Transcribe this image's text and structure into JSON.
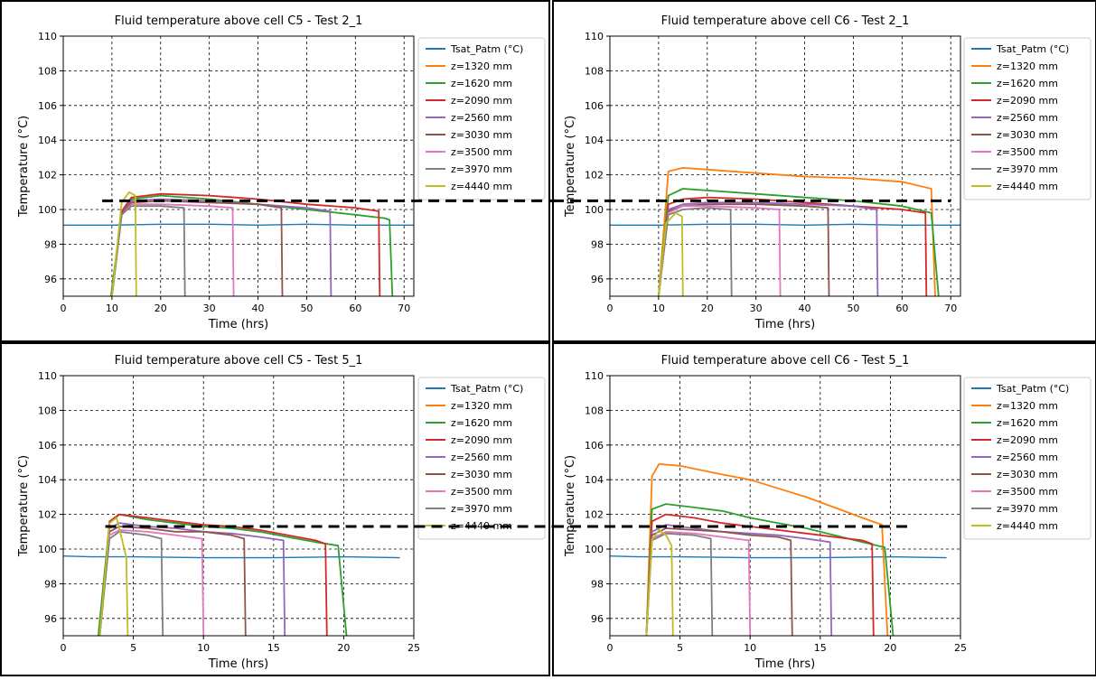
{
  "colors": {
    "Tsat_Patm (°C)": "#1f77b4",
    "z=1320 mm": "#ff7f0e",
    "z=1620 mm": "#2ca02c",
    "z=2090 mm": "#d62728",
    "z=2560 mm": "#9467bd",
    "z=3030 mm": "#8c564b",
    "z=3500 mm": "#e377c2",
    "z=3970 mm": "#7f7f7f",
    "z=4440 mm": "#bcbd22",
    "reference_line": "#000000"
  },
  "chart_data": [
    {
      "type": "line",
      "title": "Fluid temperature above cell C5 - Test 2_1",
      "xlabel": "Time (hrs)",
      "ylabel": "Temperature (°C)",
      "xlim": [
        0,
        72
      ],
      "ylim": [
        95,
        110
      ],
      "xticks": [
        0,
        10,
        20,
        30,
        40,
        50,
        60,
        70
      ],
      "yticks": [
        96,
        98,
        100,
        102,
        104,
        106,
        108,
        110
      ],
      "grid": true,
      "legend_position": "outside-right",
      "legend": [
        "Tsat_Patm (°C)",
        "z=1320 mm",
        "z=1620 mm",
        "z=2090 mm",
        "z=2560 mm",
        "z=3030 mm",
        "z=3500 mm",
        "z=3970 mm",
        "z=4440 mm"
      ],
      "reference_line": {
        "y": 100.5,
        "style": "dashed",
        "x_from": 8,
        "x_to": 70
      },
      "series": [
        {
          "name": "Tsat_Patm (°C)",
          "x": [
            0,
            10,
            20,
            30,
            40,
            50,
            60,
            70,
            72
          ],
          "y": [
            99.1,
            99.1,
            99.15,
            99.15,
            99.1,
            99.15,
            99.1,
            99.1,
            99.1
          ]
        },
        {
          "name": "z=1620 mm",
          "x": [
            9.8,
            12,
            14,
            20,
            30,
            40,
            50,
            60,
            66,
            67,
            67.6
          ],
          "y": [
            95,
            99.8,
            100.6,
            100.8,
            100.6,
            100.3,
            100,
            99.7,
            99.5,
            99.4,
            95
          ]
        },
        {
          "name": "z=2090 mm",
          "x": [
            10,
            12,
            14,
            20,
            30,
            40,
            50,
            60,
            64.8,
            65
          ],
          "y": [
            95,
            99.9,
            100.7,
            100.9,
            100.8,
            100.6,
            100.3,
            100.1,
            99.9,
            95
          ]
        },
        {
          "name": "z=2560 mm",
          "x": [
            10,
            12,
            14,
            20,
            30,
            40,
            50,
            54.8,
            55
          ],
          "y": [
            95,
            99.8,
            100.5,
            100.6,
            100.5,
            100.3,
            100.1,
            99.9,
            95
          ]
        },
        {
          "name": "z=3030 mm",
          "x": [
            10,
            12,
            14,
            20,
            30,
            40,
            44.8,
            45
          ],
          "y": [
            95,
            99.8,
            100.4,
            100.5,
            100.4,
            100.3,
            100.1,
            95
          ]
        },
        {
          "name": "z=3500 mm",
          "x": [
            10,
            12,
            14,
            20,
            30,
            34.8,
            35
          ],
          "y": [
            95,
            99.7,
            100.3,
            100.3,
            100.2,
            100.1,
            95
          ]
        },
        {
          "name": "z=3970 mm",
          "x": [
            10,
            12,
            14,
            20,
            24.8,
            25
          ],
          "y": [
            95,
            99.7,
            100.2,
            100.2,
            100.1,
            95
          ]
        },
        {
          "name": "z=4440 mm",
          "x": [
            10,
            12,
            13.5,
            14.8,
            15
          ],
          "y": [
            95,
            100.4,
            101,
            100.8,
            95
          ]
        }
      ]
    },
    {
      "type": "line",
      "title": "Fluid temperature above cell C6 - Test 2_1",
      "xlabel": "Time (hrs)",
      "ylabel": "Temperature (°C)",
      "xlim": [
        0,
        72
      ],
      "ylim": [
        95,
        110
      ],
      "xticks": [
        0,
        10,
        20,
        30,
        40,
        50,
        60,
        70
      ],
      "yticks": [
        96,
        98,
        100,
        102,
        104,
        106,
        108,
        110
      ],
      "grid": true,
      "legend_position": "outside-right",
      "legend": [
        "Tsat_Patm (°C)",
        "z=1320 mm",
        "z=1620 mm",
        "z=2090 mm",
        "z=2560 mm",
        "z=3030 mm",
        "z=3500 mm",
        "z=3970 mm",
        "z=4440 mm"
      ],
      "reference_line": {
        "y": 100.5,
        "style": "dashed",
        "x_from": 1,
        "x_to": 70
      },
      "series": [
        {
          "name": "Tsat_Patm (°C)",
          "x": [
            0,
            10,
            20,
            30,
            40,
            50,
            60,
            70,
            72
          ],
          "y": [
            99.1,
            99.1,
            99.15,
            99.15,
            99.1,
            99.15,
            99.1,
            99.1,
            99.1
          ]
        },
        {
          "name": "z=1320 mm",
          "x": [
            10,
            12,
            15,
            20,
            30,
            40,
            50,
            60,
            66,
            66.8
          ],
          "y": [
            95,
            102.2,
            102.4,
            102.3,
            102.1,
            101.9,
            101.8,
            101.6,
            101.2,
            95
          ]
        },
        {
          "name": "z=1620 mm",
          "x": [
            10,
            12,
            15,
            20,
            30,
            40,
            50,
            60,
            66,
            67.5
          ],
          "y": [
            95,
            100.8,
            101.2,
            101.1,
            100.9,
            100.7,
            100.5,
            100.2,
            99.8,
            95
          ]
        },
        {
          "name": "z=2090 mm",
          "x": [
            10,
            12,
            15,
            20,
            30,
            40,
            50,
            60,
            64.8,
            65
          ],
          "y": [
            95,
            100.3,
            100.6,
            100.7,
            100.6,
            100.4,
            100.2,
            100,
            99.8,
            95
          ]
        },
        {
          "name": "z=2560 mm",
          "x": [
            10,
            12,
            15,
            20,
            30,
            40,
            50,
            54.8,
            55
          ],
          "y": [
            95,
            100,
            100.3,
            100.4,
            100.4,
            100.3,
            100.2,
            100,
            95
          ]
        },
        {
          "name": "z=3030 mm",
          "x": [
            10,
            12,
            15,
            20,
            30,
            40,
            44.8,
            45
          ],
          "y": [
            95,
            99.9,
            100.2,
            100.3,
            100.3,
            100.2,
            100.1,
            95
          ]
        },
        {
          "name": "z=3500 mm",
          "x": [
            10,
            12,
            15,
            20,
            30,
            34.8,
            35
          ],
          "y": [
            95,
            99.8,
            100.2,
            100.2,
            100.1,
            100,
            95
          ]
        },
        {
          "name": "z=3970 mm",
          "x": [
            10,
            12,
            15,
            20,
            24.8,
            25
          ],
          "y": [
            95,
            99.7,
            100,
            100.1,
            100,
            95
          ]
        },
        {
          "name": "z=4440 mm",
          "x": [
            10,
            11.5,
            13.5,
            14.8,
            15
          ],
          "y": [
            95,
            99.2,
            99.8,
            99.6,
            95
          ]
        }
      ]
    },
    {
      "type": "line",
      "title": "Fluid temperature above cell C5 - Test 5_1",
      "xlabel": "Time (hrs)",
      "ylabel": "Temperature (°C)",
      "xlim": [
        0,
        25
      ],
      "ylim": [
        95,
        110
      ],
      "xticks": [
        0,
        5,
        10,
        15,
        20,
        25
      ],
      "yticks": [
        96,
        98,
        100,
        102,
        104,
        106,
        108,
        110
      ],
      "grid": true,
      "legend_position": "outside-right",
      "legend": [
        "Tsat_Patm (°C)",
        "z=1320 mm",
        "z=1620 mm",
        "z=2090 mm",
        "z=2560 mm",
        "z=3030 mm",
        "z=3500 mm",
        "z=3970 mm",
        "z=4440 mm"
      ],
      "reference_line": {
        "y": 101.3,
        "style": "dashed",
        "x_from": 3,
        "x_to": 25
      },
      "series": [
        {
          "name": "Tsat_Patm (°C)",
          "x": [
            0,
            2,
            5,
            10,
            15,
            20,
            24
          ],
          "y": [
            99.6,
            99.55,
            99.55,
            99.5,
            99.5,
            99.55,
            99.5
          ]
        },
        {
          "name": "z=1620 mm",
          "x": [
            2.5,
            3.3,
            4,
            6,
            8,
            10,
            12,
            14,
            16,
            18,
            19.6,
            20.2
          ],
          "y": [
            95,
            101.5,
            102,
            101.7,
            101.5,
            101.3,
            101.2,
            101,
            100.7,
            100.4,
            100.2,
            95
          ]
        },
        {
          "name": "z=2090 mm",
          "x": [
            2.6,
            3.3,
            4,
            6,
            8,
            10,
            12,
            14,
            16,
            18,
            18.7,
            18.8
          ],
          "y": [
            95,
            101.6,
            102,
            101.8,
            101.6,
            101.4,
            101.3,
            101.1,
            100.8,
            100.5,
            100.3,
            95
          ]
        },
        {
          "name": "z=2560 mm",
          "x": [
            2.6,
            3.3,
            4,
            6,
            8,
            10,
            12,
            14,
            15.7,
            15.8
          ],
          "y": [
            95,
            101.2,
            101.5,
            101.3,
            101.2,
            101,
            100.9,
            100.7,
            100.5,
            95
          ]
        },
        {
          "name": "z=3030 mm",
          "x": [
            2.6,
            3.3,
            4,
            6,
            8,
            10,
            12,
            12.9,
            13
          ],
          "y": [
            95,
            101,
            101.3,
            101.2,
            101,
            101,
            100.8,
            100.6,
            95
          ]
        },
        {
          "name": "z=3500 mm",
          "x": [
            2.6,
            3.3,
            4,
            6,
            8,
            9.9,
            10
          ],
          "y": [
            95,
            100.8,
            101.1,
            101,
            100.8,
            100.6,
            95
          ]
        },
        {
          "name": "z=3970 mm",
          "x": [
            2.6,
            3.3,
            4,
            6,
            7,
            7.1
          ],
          "y": [
            95,
            100.6,
            101,
            100.8,
            100.6,
            95
          ]
        },
        {
          "name": "z=4440 mm",
          "x": [
            2.6,
            3.3,
            3.8,
            4.2,
            4.5,
            4.6
          ],
          "y": [
            95,
            101.5,
            101.8,
            100.5,
            99.5,
            95
          ]
        }
      ]
    },
    {
      "type": "line",
      "title": "Fluid temperature above cell C6 - Test 5_1",
      "xlabel": "Time (hrs)",
      "ylabel": "Temperature (°C)",
      "xlim": [
        0,
        25
      ],
      "ylim": [
        95,
        110
      ],
      "xticks": [
        0,
        5,
        10,
        15,
        20,
        25
      ],
      "yticks": [
        96,
        98,
        100,
        102,
        104,
        106,
        108,
        110
      ],
      "grid": true,
      "legend_position": "outside-right",
      "legend": [
        "Tsat_Patm (°C)",
        "z=1320 mm",
        "z=1620 mm",
        "z=2090 mm",
        "z=2560 mm",
        "z=3030 mm",
        "z=3500 mm",
        "z=3970 mm",
        "z=4440 mm"
      ],
      "reference_line": {
        "y": 101.3,
        "style": "dashed",
        "x_from": 0,
        "x_to": 21.5
      },
      "series": [
        {
          "name": "Tsat_Patm (°C)",
          "x": [
            0,
            2,
            5,
            10,
            15,
            20,
            24
          ],
          "y": [
            99.6,
            99.55,
            99.55,
            99.5,
            99.5,
            99.55,
            99.5
          ]
        },
        {
          "name": "z=1320 mm",
          "x": [
            2.6,
            3,
            3.5,
            5,
            8,
            10,
            12,
            14,
            16,
            18,
            19.4,
            19.8
          ],
          "y": [
            95,
            104.2,
            104.9,
            104.8,
            104.3,
            104,
            103.5,
            103,
            102.4,
            101.8,
            101.4,
            95
          ]
        },
        {
          "name": "z=1620 mm",
          "x": [
            2.6,
            3,
            4,
            6,
            8,
            10,
            12,
            14,
            16,
            18,
            19.6,
            20.2
          ],
          "y": [
            95,
            102.3,
            102.6,
            102.4,
            102.2,
            101.8,
            101.5,
            101.2,
            100.8,
            100.4,
            100.1,
            95
          ]
        },
        {
          "name": "z=2090 mm",
          "x": [
            2.6,
            3,
            4,
            6,
            8,
            10,
            12,
            14,
            16,
            18,
            18.7,
            18.8
          ],
          "y": [
            95,
            101.6,
            102,
            101.8,
            101.5,
            101.3,
            101.1,
            100.9,
            100.7,
            100.5,
            100.3,
            95
          ]
        },
        {
          "name": "z=2560 mm",
          "x": [
            2.6,
            3,
            4,
            6,
            8,
            10,
            12,
            14,
            15.7,
            15.8
          ],
          "y": [
            95,
            101,
            101.4,
            101.2,
            101,
            100.9,
            100.8,
            100.6,
            100.4,
            95
          ]
        },
        {
          "name": "z=3030 mm",
          "x": [
            2.6,
            3,
            4,
            6,
            8,
            10,
            12,
            12.9,
            13
          ],
          "y": [
            95,
            100.8,
            101.2,
            101.1,
            101,
            100.8,
            100.7,
            100.5,
            95
          ]
        },
        {
          "name": "z=3500 mm",
          "x": [
            2.6,
            3,
            4,
            6,
            8,
            9.9,
            10
          ],
          "y": [
            95,
            100.6,
            101,
            100.9,
            100.7,
            100.5,
            95
          ]
        },
        {
          "name": "z=3970 mm",
          "x": [
            2.6,
            3,
            4,
            6,
            7.2,
            7.3
          ],
          "y": [
            95,
            100.5,
            100.9,
            100.8,
            100.6,
            95
          ]
        },
        {
          "name": "z=4440 mm",
          "x": [
            2.6,
            3,
            3.5,
            4,
            4.4,
            4.5
          ],
          "y": [
            95,
            100.5,
            101.1,
            100.8,
            100.2,
            95
          ]
        }
      ]
    }
  ]
}
